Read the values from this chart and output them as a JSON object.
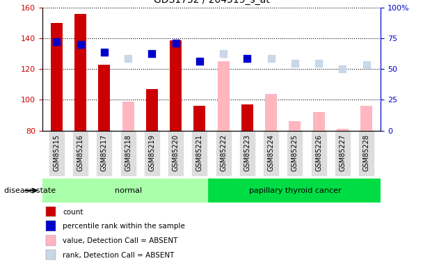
{
  "title": "GDS1732 / 204519_s_at",
  "samples": [
    "GSM85215",
    "GSM85216",
    "GSM85217",
    "GSM85218",
    "GSM85219",
    "GSM85220",
    "GSM85221",
    "GSM85222",
    "GSM85223",
    "GSM85224",
    "GSM85225",
    "GSM85226",
    "GSM85227",
    "GSM85228"
  ],
  "count_values": [
    150,
    156,
    123,
    null,
    107,
    139,
    96,
    null,
    97,
    null,
    null,
    null,
    null,
    null
  ],
  "count_absent": [
    null,
    null,
    null,
    99,
    null,
    null,
    null,
    125,
    null,
    104,
    86,
    92,
    81,
    96
  ],
  "rank_values": [
    138,
    136,
    131,
    null,
    130,
    137,
    125,
    null,
    127,
    null,
    null,
    null,
    null,
    null
  ],
  "rank_absent": [
    null,
    null,
    null,
    127,
    null,
    null,
    null,
    130,
    null,
    127,
    124,
    124,
    120,
    123
  ],
  "ylim_left": [
    80,
    160
  ],
  "ylim_right": [
    0,
    100
  ],
  "yticks_left": [
    80,
    100,
    120,
    140,
    160
  ],
  "yticks_right": [
    0,
    25,
    50,
    75,
    100
  ],
  "yticklabels_right": [
    "0",
    "25",
    "50",
    "75",
    "100%"
  ],
  "color_count": "#CC0000",
  "color_rank": "#0000CC",
  "color_count_absent": "#FFB6C1",
  "color_rank_absent": "#C8D8E8",
  "group1_label": "normal",
  "group2_label": "papillary thyroid cancer",
  "group1_color": "#AAFFAA",
  "group2_color": "#00DD44",
  "group1_indices": [
    0,
    1,
    2,
    3,
    4,
    5,
    6
  ],
  "group2_indices": [
    7,
    8,
    9,
    10,
    11,
    12,
    13
  ],
  "disease_state_label": "disease state",
  "legend_items": [
    {
      "label": "count",
      "color": "#CC0000"
    },
    {
      "label": "percentile rank within the sample",
      "color": "#0000CC"
    },
    {
      "label": "value, Detection Call = ABSENT",
      "color": "#FFB6C1"
    },
    {
      "label": "rank, Detection Call = ABSENT",
      "color": "#C8D8E8"
    }
  ],
  "bar_width": 0.5,
  "dot_size": 45,
  "figsize": [
    6.08,
    3.75
  ],
  "dpi": 100,
  "xtick_bg": "#DDDDDD"
}
